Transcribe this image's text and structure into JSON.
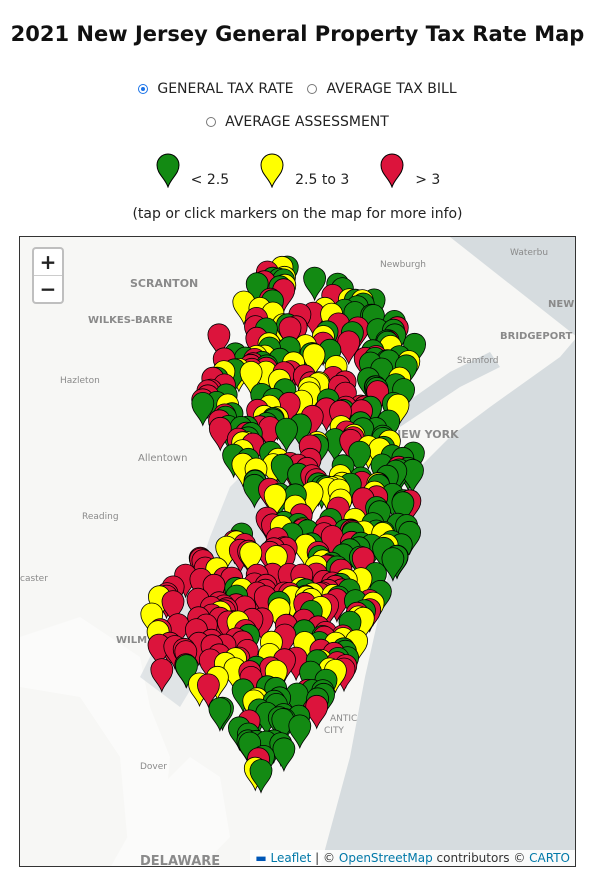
{
  "title": "2021 New Jersey General Property Tax Rate Map",
  "options": [
    {
      "label": "GENERAL TAX RATE",
      "checked": true
    },
    {
      "label": "AVERAGE TAX BILL",
      "checked": false
    },
    {
      "label": "AVERAGE ASSESSMENT",
      "checked": false
    }
  ],
  "legend": [
    {
      "label": "< 2.5",
      "color": "#138a13"
    },
    {
      "label": "2.5 to 3",
      "color": "#ffff00"
    },
    {
      "label": "> 3",
      "color": "#dc143c"
    }
  ],
  "note": "(tap or click markers on the map for more info)",
  "zoom": [
    "+",
    "−"
  ],
  "map_labels": [
    "SCRANTON",
    "WILKES-BARRE",
    "Hazleton",
    "Allentown",
    "Reading",
    "caster",
    "WILM",
    "Dover",
    "DELAWARE",
    "Newburgh",
    "Waterbu",
    "NEW",
    "BRIDGEPORT",
    "Stamford",
    "NEW YORK",
    "ANTIC",
    "CITY"
  ],
  "attribution": {
    "leaflet": "Leaflet",
    "sep": "|",
    "copy": "©",
    "osm": "OpenStreetMap",
    "contrib": "contributors ©",
    "carto": "CARTO"
  }
}
